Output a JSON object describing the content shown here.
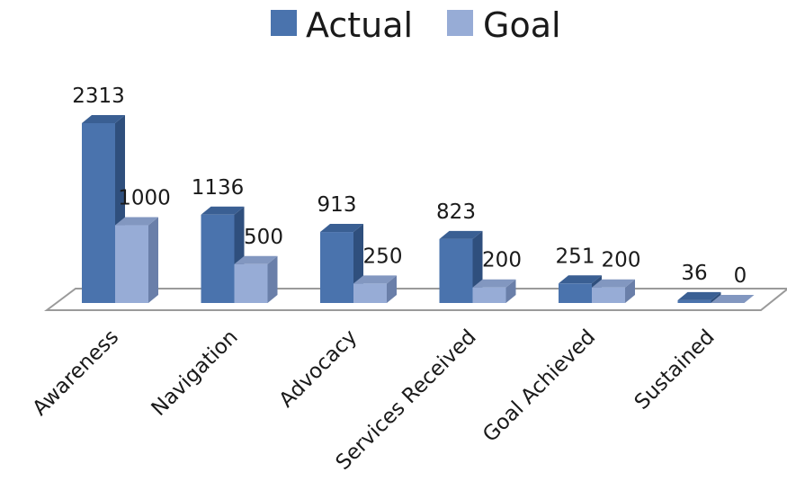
{
  "chart_data": {
    "type": "bar",
    "style": "3d-clustered-column",
    "categories": [
      "Awareness",
      "Navigation",
      "Advocacy",
      "Services Received",
      "Goal Achieved",
      "Sustained"
    ],
    "series": [
      {
        "name": "Actual",
        "values": [
          2313,
          1136,
          913,
          823,
          251,
          36
        ]
      },
      {
        "name": "Goal",
        "values": [
          1000,
          500,
          250,
          200,
          200,
          0
        ]
      }
    ],
    "title": "",
    "xlabel": "",
    "ylabel": "",
    "ylim": [
      0,
      2313
    ],
    "grid": false,
    "legend_position": "top",
    "colors": {
      "actual_front": "#4a73ad",
      "actual_side": "#2f4f7d",
      "actual_top": "#3a5f93",
      "goal_front": "#97acd6",
      "goal_side": "#6a7fa9",
      "goal_top": "#8297c0",
      "floor_stroke": "#9a9a9a"
    }
  }
}
